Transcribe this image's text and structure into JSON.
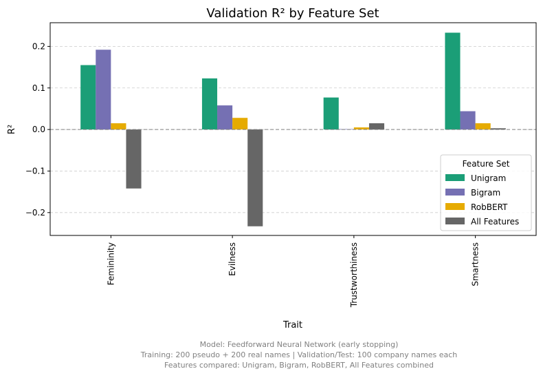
{
  "chart_data": {
    "type": "bar",
    "title": "Validation R² by Feature Set",
    "xlabel": "Trait",
    "ylabel": "R²",
    "categories": [
      "Femininity",
      "Evilness",
      "Trustworthiness",
      "Smartness"
    ],
    "ylim": [
      -0.255,
      0.257
    ],
    "yticks": [
      0.2,
      0.1,
      0.0,
      -0.1,
      -0.2
    ],
    "ytick_labels": [
      "0.2",
      "0.1",
      "0.0",
      "−0.1",
      "−0.2"
    ],
    "grid": true,
    "zero_line": true,
    "legend": {
      "title": "Feature Set",
      "position": "lower-right"
    },
    "series": [
      {
        "name": "Unigram",
        "color": "#1b9e77",
        "values": [
          0.155,
          0.123,
          0.077,
          0.233
        ]
      },
      {
        "name": "Bigram",
        "color": "#7570b3",
        "values": [
          0.192,
          0.058,
          0.001,
          0.044
        ]
      },
      {
        "name": "RobBERT",
        "color": "#e6ab02",
        "values": [
          0.015,
          0.028,
          0.005,
          0.015
        ]
      },
      {
        "name": "All Features",
        "color": "#666666",
        "values": [
          -0.142,
          -0.233,
          0.015,
          0.003
        ]
      }
    ]
  },
  "footnote": [
    "Model: Feedforward Neural Network (early stopping)",
    "Training: 200 pseudo + 200 real names | Validation/Test: 100 company names each",
    "Features compared: Unigram, Bigram, RobBERT, All Features combined"
  ]
}
